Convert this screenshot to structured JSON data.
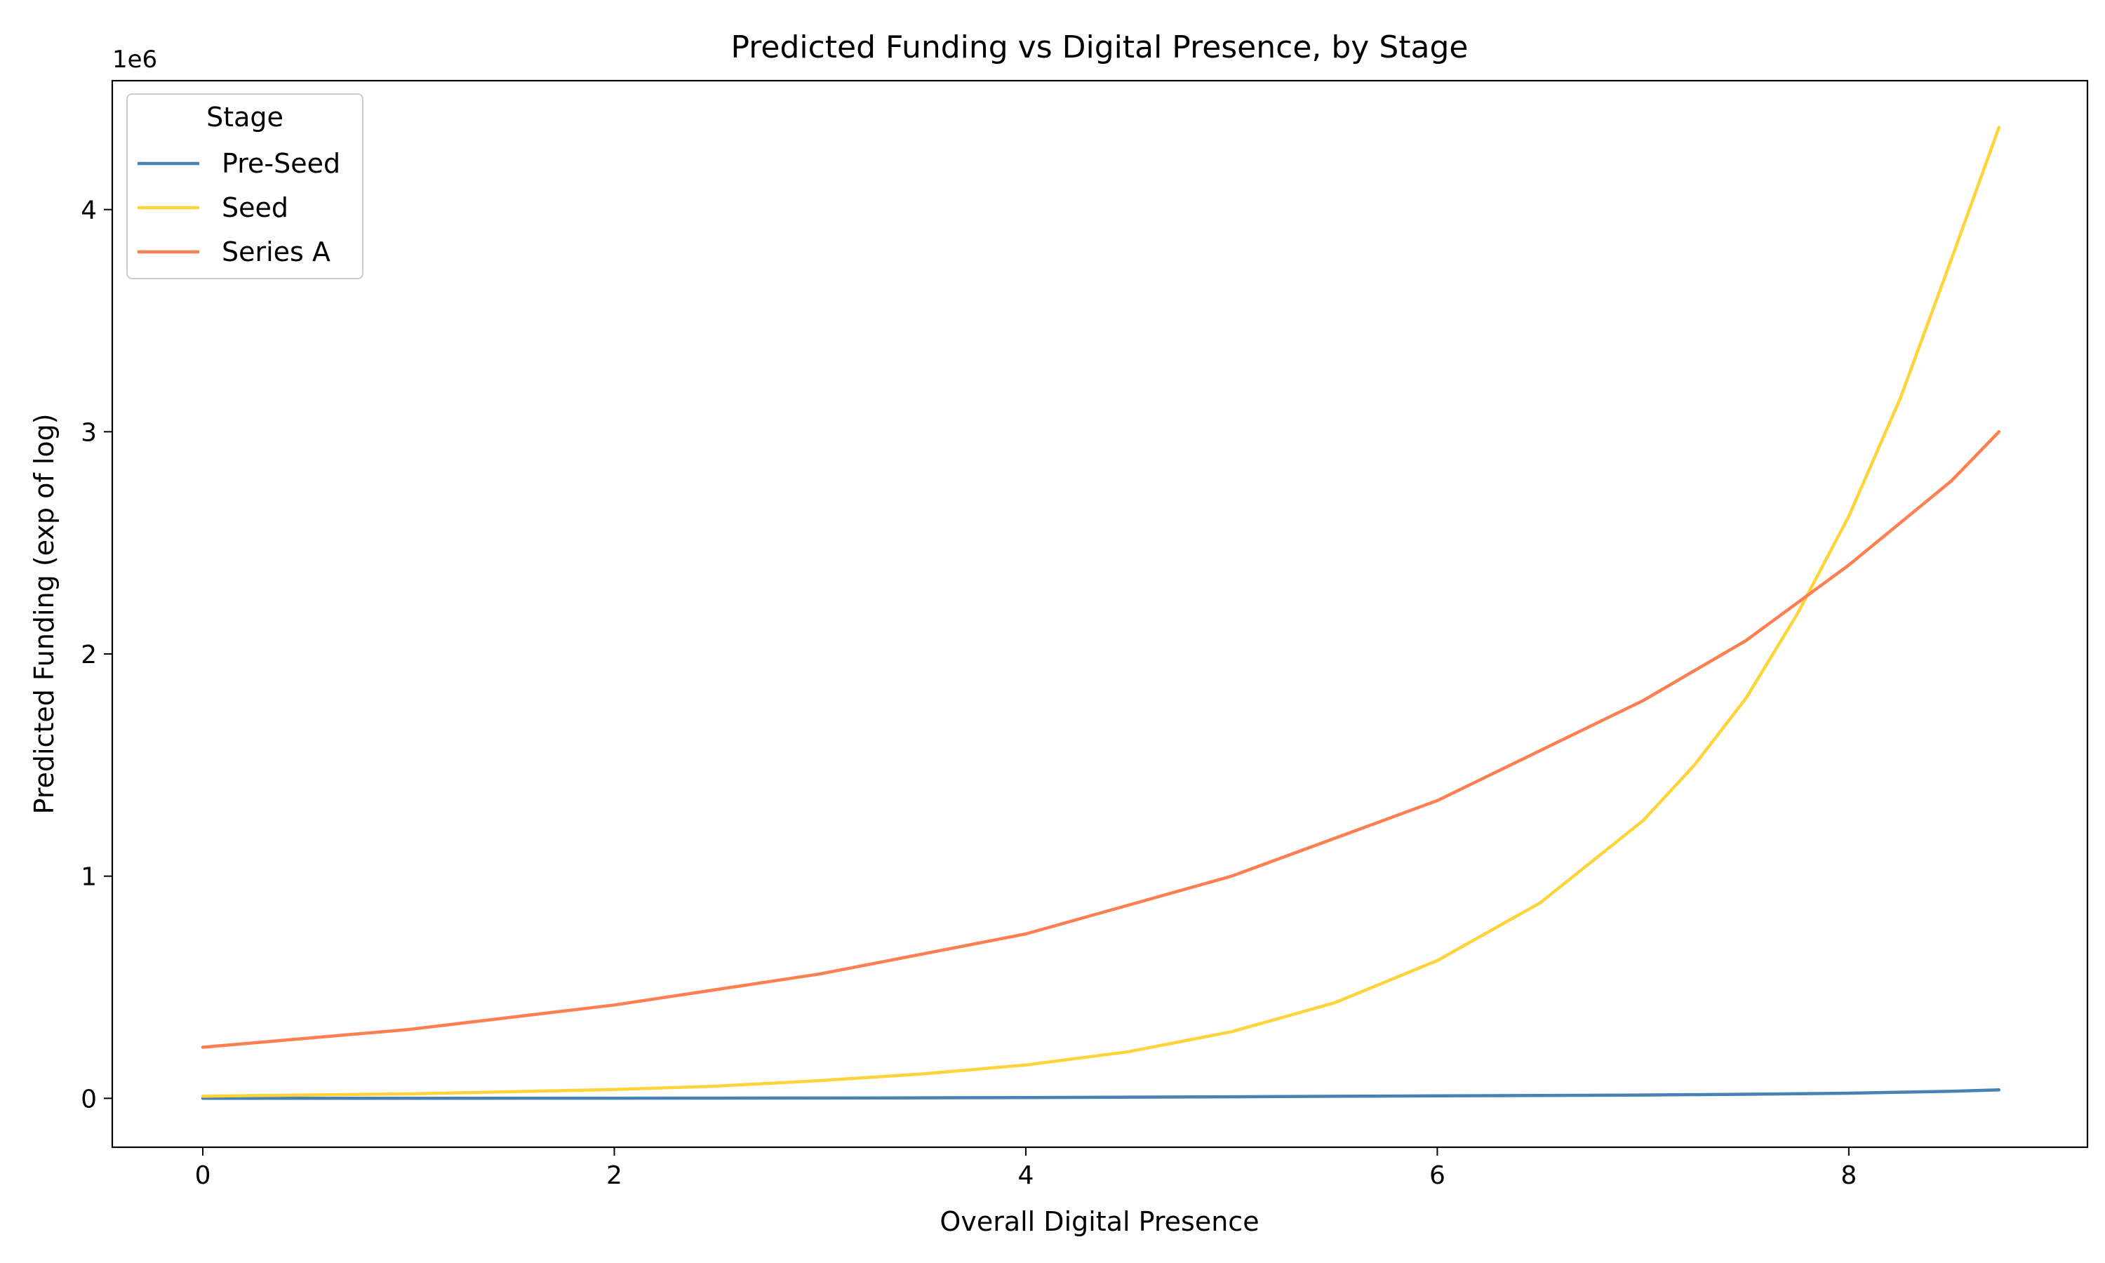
{
  "chart_data": {
    "type": "line",
    "title": "Predicted Funding vs Digital Presence, by Stage",
    "xlabel": "Overall Digital Presence",
    "ylabel": "Predicted Funding (exp of log)",
    "y_offset_label": "1e6",
    "y_scale_factor": 1000000,
    "xlim": [
      -0.44,
      9.16
    ],
    "ylim": [
      -220000,
      4580000
    ],
    "xticks": [
      0,
      2,
      4,
      6,
      8
    ],
    "yticks": [
      0,
      1000000,
      2000000,
      3000000,
      4000000
    ],
    "ytick_labels": [
      "0",
      "1",
      "2",
      "3",
      "4"
    ],
    "grid": false,
    "legend": {
      "title": "Stage",
      "position": "top-left"
    },
    "series": [
      {
        "name": "Pre-Seed",
        "color": "#4682B4",
        "x": [
          0,
          1,
          2,
          3,
          4,
          5,
          6,
          7,
          7.5,
          8,
          8.5,
          8.73
        ],
        "y": [
          100,
          250,
          600,
          1400,
          3200,
          7200,
          11000,
          15000,
          18500,
          23000,
          32000,
          38000
        ]
      },
      {
        "name": "Seed",
        "color": "#FFD43B",
        "x": [
          0,
          1,
          2,
          2.5,
          3,
          3.5,
          4,
          4.5,
          5,
          5.5,
          6,
          6.5,
          7,
          7.25,
          7.5,
          7.75,
          8,
          8.25,
          8.5,
          8.73
        ],
        "y": [
          10000,
          20000,
          40000,
          55000,
          80000,
          110000,
          150000,
          210000,
          300000,
          430000,
          620000,
          880000,
          1250000,
          1500000,
          1800000,
          2180000,
          2620000,
          3150000,
          3780000,
          4370000
        ]
      },
      {
        "name": "Series A",
        "color": "#FF7F50",
        "x": [
          0,
          1,
          2,
          3,
          4,
          5,
          6,
          7,
          7.5,
          8,
          8.5,
          8.73
        ],
        "y": [
          230000,
          310000,
          420000,
          560000,
          740000,
          1000000,
          1340000,
          1790000,
          2060000,
          2400000,
          2780000,
          3000000
        ]
      }
    ]
  }
}
